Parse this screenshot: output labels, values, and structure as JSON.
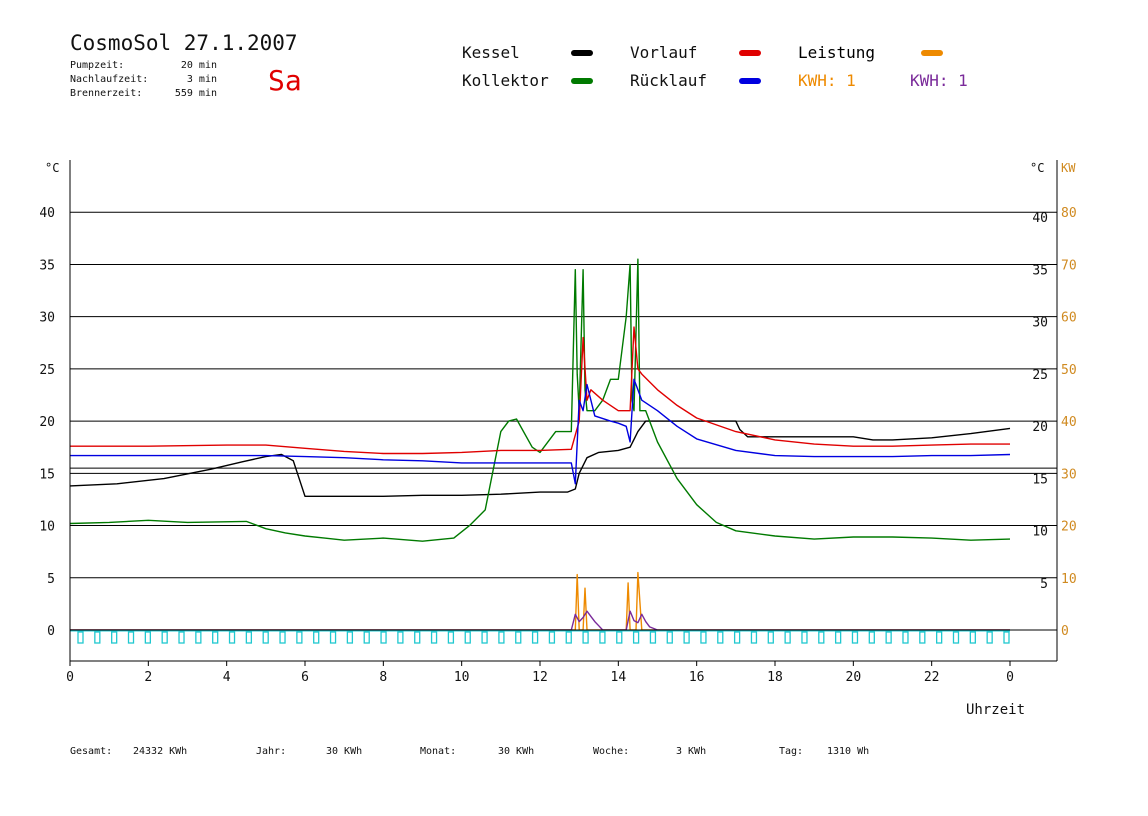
{
  "header": {
    "title": "CosmoSol 27.1.2007",
    "day": "Sa",
    "info": [
      {
        "label": "Pumpzeit:",
        "value": "20 min"
      },
      {
        "label": "Nachlaufzeit:",
        "value": "3 min"
      },
      {
        "label": "Brennerzeit:",
        "value": "559 min"
      }
    ]
  },
  "legend": [
    {
      "label": "Kessel",
      "color": "#000000",
      "swatch": true
    },
    {
      "label": "Kollektor",
      "color": "#007a00",
      "swatch": true
    },
    {
      "label": "Vorlauf",
      "color": "#e00000",
      "swatch": true
    },
    {
      "label": "Rücklauf",
      "color": "#0000e0",
      "swatch": true
    },
    {
      "label": "Leistung",
      "color": "#ee8a00",
      "swatch": true,
      "label_color": "#000000"
    },
    {
      "label": "KWH: 1",
      "color": "#ee8a00",
      "swatch": false,
      "label_color": "#ee8a00"
    },
    {
      "label": "KWH: 1",
      "color": "#7a2a9a",
      "swatch": false,
      "label_color": "#7a2a9a"
    }
  ],
  "colors": {
    "kessel": "#000000",
    "kollektor": "#007a00",
    "vorlauf": "#e00000",
    "ruecklauf": "#0000e0",
    "leistung": "#ee8a00",
    "leistung2": "#7a2a9a",
    "pump": "#20c8d0",
    "right_kw_axis": "#d08a20"
  },
  "footer": [
    {
      "label": "Gesamt:",
      "value": "24332 KWh"
    },
    {
      "label": "Jahr:",
      "value": "30 KWh"
    },
    {
      "label": "Monat:",
      "value": "30 KWh"
    },
    {
      "label": "Woche:",
      "value": "3 KWh"
    },
    {
      "label": "Tag:",
      "value": "1310 Wh"
    }
  ],
  "chart_data": {
    "type": "line",
    "xlabel": "Uhrzeit",
    "x_ticks": [
      "0",
      "2",
      "4",
      "6",
      "8",
      "10",
      "12",
      "14",
      "16",
      "18",
      "20",
      "22",
      "0"
    ],
    "xlim": [
      0,
      24
    ],
    "ylabel_left": "°C",
    "ylabel_right": "°C",
    "ylabel_right2": "KW",
    "ylim": [
      0,
      45
    ],
    "y_ticks": [
      0,
      5,
      10,
      15,
      20,
      25,
      30,
      35,
      40
    ],
    "y_ticks_left": [
      "0",
      "5",
      "10",
      "15",
      "20",
      "25",
      "30",
      "35",
      "40"
    ],
    "y_ticks_right": [
      "",
      "5",
      "10",
      "15",
      "20",
      "25",
      "30",
      "35",
      "40"
    ],
    "y2_ticks": [
      "0",
      "10",
      "20",
      "30",
      "40",
      "50",
      "60",
      "70",
      "80"
    ],
    "grid": true,
    "series": [
      {
        "name": "Kessel",
        "key": "kessel",
        "x": [
          0,
          1.2,
          2.4,
          3.6,
          4.4,
          5.0,
          5.4,
          5.7,
          6.0,
          7.0,
          8.0,
          9.0,
          10.0,
          11.0,
          12.0,
          12.7,
          12.9,
          13.0,
          13.2,
          13.5,
          14.0,
          14.3,
          14.5,
          14.7,
          15.0,
          16.0,
          17.0,
          17.1,
          17.3,
          18.0,
          19.0,
          20.0,
          20.5,
          21.0,
          22.0,
          23.0,
          24.0
        ],
        "y": [
          13.8,
          14.0,
          14.5,
          15.4,
          16.1,
          16.6,
          16.8,
          16.2,
          12.8,
          12.8,
          12.8,
          12.9,
          12.9,
          13.0,
          13.2,
          13.2,
          13.5,
          15.0,
          16.5,
          17.0,
          17.2,
          17.5,
          19.0,
          20.0,
          20.0,
          20.0,
          20.0,
          19.2,
          18.5,
          18.5,
          18.5,
          18.5,
          18.2,
          18.2,
          18.4,
          18.8,
          19.3
        ]
      },
      {
        "name": "Kollektor",
        "key": "kollektor",
        "x": [
          0,
          1,
          2,
          3,
          4.5,
          5,
          5.5,
          6,
          6.5,
          7,
          8,
          9,
          9.8,
          10.2,
          10.6,
          11.0,
          11.2,
          11.4,
          11.8,
          12.0,
          12.4,
          12.8,
          12.9,
          12.95,
          13.0,
          13.1,
          13.15,
          13.2,
          13.4,
          13.6,
          13.8,
          14.0,
          14.2,
          14.3,
          14.35,
          14.4,
          14.5,
          14.55,
          14.7,
          15.0,
          15.5,
          16.0,
          16.5,
          17.0,
          18.0,
          19.0,
          20.0,
          21.0,
          22.0,
          23.0,
          24.0
        ],
        "y": [
          10.2,
          10.3,
          10.5,
          10.3,
          10.4,
          9.7,
          9.3,
          9.0,
          8.8,
          8.6,
          8.8,
          8.5,
          8.8,
          10.0,
          11.5,
          19.0,
          20.0,
          20.2,
          17.5,
          17.0,
          19.0,
          19.0,
          34.5,
          24.5,
          21.0,
          34.5,
          23.0,
          21.0,
          21.0,
          22.0,
          24.0,
          24.0,
          30.0,
          35.0,
          22.0,
          21.0,
          35.5,
          21.0,
          21.0,
          18.0,
          14.5,
          12.0,
          10.3,
          9.5,
          9.0,
          8.7,
          8.9,
          8.9,
          8.8,
          8.6,
          8.7
        ]
      },
      {
        "name": "Vorlauf",
        "key": "vorlauf",
        "x": [
          0,
          2,
          4,
          5,
          6,
          7,
          8,
          9,
          10,
          11,
          12,
          12.8,
          13.0,
          13.1,
          13.2,
          13.3,
          13.6,
          14.0,
          14.3,
          14.4,
          14.5,
          14.6,
          15.0,
          15.5,
          16.0,
          17.0,
          18.0,
          19.0,
          20.0,
          21.0,
          22.0,
          23.0,
          24.0
        ],
        "y": [
          17.6,
          17.6,
          17.7,
          17.7,
          17.4,
          17.1,
          16.9,
          16.9,
          17.0,
          17.2,
          17.2,
          17.3,
          20.0,
          28.0,
          22.0,
          23.0,
          22.0,
          21.0,
          21.0,
          29.0,
          25.0,
          24.5,
          23.0,
          21.5,
          20.3,
          19.0,
          18.2,
          17.8,
          17.6,
          17.6,
          17.7,
          17.8,
          17.8
        ]
      },
      {
        "name": "Rücklauf",
        "key": "ruecklauf",
        "x": [
          0,
          2,
          4,
          5,
          6,
          7,
          8,
          9,
          10,
          11,
          12,
          12.8,
          12.9,
          13.0,
          13.1,
          13.2,
          13.4,
          13.8,
          14.0,
          14.2,
          14.3,
          14.4,
          14.5,
          14.6,
          15.0,
          15.5,
          16.0,
          17.0,
          18.0,
          19.0,
          20.0,
          21.0,
          22.0,
          23.0,
          24.0
        ],
        "y": [
          16.7,
          16.7,
          16.7,
          16.7,
          16.6,
          16.5,
          16.3,
          16.2,
          16.0,
          16.0,
          16.0,
          16.0,
          14.0,
          22.0,
          21.0,
          23.5,
          20.5,
          20.0,
          19.8,
          19.5,
          18.0,
          24.0,
          23.0,
          22.0,
          21.0,
          19.5,
          18.3,
          17.2,
          16.7,
          16.6,
          16.6,
          16.6,
          16.7,
          16.7,
          16.8
        ]
      },
      {
        "name": "Leistung",
        "key": "leistung",
        "x": [
          0,
          12.8,
          12.9,
          12.95,
          13.0,
          13.1,
          13.15,
          13.2,
          13.4,
          13.6,
          14.0,
          14.2,
          14.25,
          14.3,
          14.4,
          14.45,
          14.5,
          14.6,
          14.8,
          15.0,
          24.0
        ],
        "y": [
          0,
          0,
          0,
          5.3,
          0,
          0,
          4.0,
          0,
          0,
          0,
          0,
          0,
          4.5,
          0,
          0,
          0,
          5.5,
          0,
          0,
          0,
          0
        ]
      },
      {
        "name": "Leistung 2",
        "key": "leistung2",
        "x": [
          0,
          12.8,
          12.9,
          13.0,
          13.1,
          13.2,
          13.3,
          13.4,
          13.5,
          13.6,
          14.0,
          14.2,
          14.3,
          14.4,
          14.5,
          14.6,
          14.7,
          14.8,
          15.0,
          24.0
        ],
        "y": [
          0,
          0,
          1.5,
          0.8,
          1.2,
          1.8,
          1.3,
          0.8,
          0.4,
          0,
          0,
          0,
          1.8,
          0.9,
          0.7,
          1.5,
          0.8,
          0.3,
          0,
          0
        ]
      }
    ],
    "pump_markers_count": 56
  }
}
